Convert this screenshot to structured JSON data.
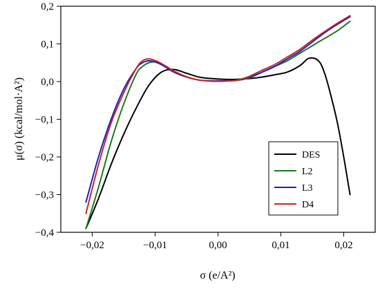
{
  "chart_data": {
    "type": "line",
    "title": "",
    "xlabel": "σ (e/A²)",
    "ylabel": "μ(σ) (kcal/mol·A²)",
    "xlim": [
      -0.025,
      0.025
    ],
    "ylim": [
      -0.4,
      0.2
    ],
    "xticks": [
      -0.02,
      -0.01,
      0.0,
      0.01,
      0.02
    ],
    "xtick_labels": [
      "−0,02",
      "−0,01",
      "0,00",
      "0,01",
      "0,02"
    ],
    "yticks": [
      -0.4,
      -0.3,
      -0.2,
      -0.1,
      0.0,
      0.1,
      0.2
    ],
    "ytick_labels": [
      "−0,4",
      "−0,3",
      "−0,2",
      "−0,1",
      "0,0",
      "0,1",
      "0,2"
    ],
    "grid": false,
    "legend_position": "bottom-right",
    "series": [
      {
        "name": "DES",
        "color": "#000000",
        "x": [
          -0.021,
          -0.019,
          -0.017,
          -0.015,
          -0.013,
          -0.011,
          -0.009,
          -0.007,
          -0.005,
          -0.003,
          -0.001,
          0.001,
          0.003,
          0.005,
          0.007,
          0.009,
          0.011,
          0.013,
          0.0145,
          0.016,
          0.017,
          0.018,
          0.019,
          0.02,
          0.021
        ],
        "y": [
          -0.39,
          -0.31,
          -0.22,
          -0.14,
          -0.07,
          -0.01,
          0.025,
          0.032,
          0.022,
          0.012,
          0.008,
          0.006,
          0.006,
          0.008,
          0.012,
          0.018,
          0.025,
          0.042,
          0.062,
          0.055,
          0.02,
          -0.04,
          -0.11,
          -0.2,
          -0.3
        ]
      },
      {
        "name": "L2",
        "color": "#1a7a1a",
        "x": [
          -0.021,
          -0.019,
          -0.017,
          -0.015,
          -0.013,
          -0.012,
          -0.011,
          -0.01,
          -0.009,
          -0.008,
          -0.007,
          -0.005,
          -0.003,
          -0.001,
          0.001,
          0.003,
          0.005,
          0.007,
          0.009,
          0.011,
          0.013,
          0.015,
          0.017,
          0.019,
          0.021
        ],
        "y": [
          -0.39,
          -0.28,
          -0.16,
          -0.06,
          0.02,
          0.04,
          0.05,
          0.052,
          0.045,
          0.035,
          0.025,
          0.012,
          0.004,
          0.002,
          0.002,
          0.003,
          0.01,
          0.025,
          0.04,
          0.055,
          0.075,
          0.095,
          0.115,
          0.135,
          0.16
        ]
      },
      {
        "name": "L3",
        "color": "#1f1fbf",
        "x": [
          -0.021,
          -0.019,
          -0.017,
          -0.015,
          -0.013,
          -0.012,
          -0.011,
          -0.01,
          -0.009,
          -0.008,
          -0.007,
          -0.005,
          -0.003,
          -0.001,
          0.001,
          0.003,
          0.005,
          0.007,
          0.009,
          0.011,
          0.013,
          0.015,
          0.017,
          0.019,
          0.021
        ],
        "y": [
          -0.32,
          -0.2,
          -0.1,
          -0.02,
          0.035,
          0.05,
          0.055,
          0.052,
          0.045,
          0.035,
          0.025,
          0.012,
          0.004,
          0.002,
          0.002,
          0.004,
          0.012,
          0.025,
          0.04,
          0.06,
          0.08,
          0.105,
          0.13,
          0.152,
          0.172
        ]
      },
      {
        "name": "D4",
        "color": "#cc2222",
        "x": [
          -0.021,
          -0.019,
          -0.017,
          -0.015,
          -0.013,
          -0.012,
          -0.011,
          -0.01,
          -0.009,
          -0.008,
          -0.007,
          -0.005,
          -0.003,
          -0.001,
          0.001,
          0.003,
          0.005,
          0.007,
          0.009,
          0.011,
          0.013,
          0.015,
          0.017,
          0.019,
          0.021
        ],
        "y": [
          -0.35,
          -0.22,
          -0.11,
          -0.03,
          0.035,
          0.055,
          0.06,
          0.056,
          0.048,
          0.038,
          0.028,
          0.013,
          0.004,
          0.001,
          0.001,
          0.004,
          0.014,
          0.03,
          0.045,
          0.065,
          0.085,
          0.11,
          0.133,
          0.155,
          0.175
        ]
      }
    ]
  }
}
